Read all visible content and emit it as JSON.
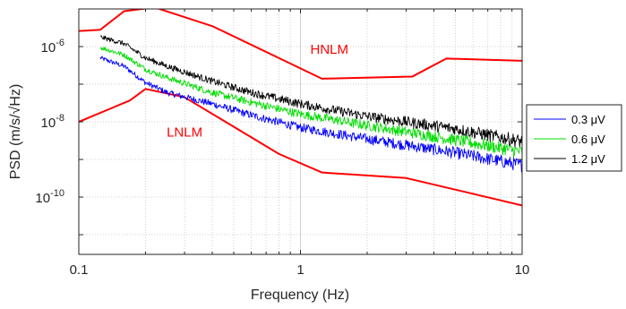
{
  "chart_data": {
    "type": "line",
    "xscale": "log",
    "yscale": "log",
    "xlim": [
      0.1,
      10
    ],
    "ylim": [
      3e-12,
      1e-05
    ],
    "xlabel": "Frequency (Hz)",
    "ylabel": "PSD (m/s/√Hz)",
    "xticks": [
      {
        "value": 0.1,
        "label": "0.1"
      },
      {
        "value": 1,
        "label": "1"
      },
      {
        "value": 10,
        "label": "10"
      }
    ],
    "yticks": [
      {
        "value": 1e-10,
        "base": "10",
        "exp": "-10"
      },
      {
        "value": 1e-08,
        "base": "10",
        "exp": "-8"
      },
      {
        "value": 1e-06,
        "base": "10",
        "exp": "-6"
      }
    ],
    "grid": true,
    "legend": {
      "placement": "outside-right"
    },
    "annotations": [
      {
        "text": "HNLM",
        "x": 1.35,
        "y": 6.5e-07,
        "color": "#ff0000"
      },
      {
        "text": "LNLM",
        "x": 0.3,
        "y": 4e-09,
        "color": "#ff0000"
      }
    ],
    "series": [
      {
        "key": "hnlm",
        "color": "#ff0000",
        "noise": false,
        "x": [
          0.1,
          0.125,
          0.16,
          0.22,
          0.4,
          1.25,
          3.2,
          4.55,
          10
        ],
        "y": [
          2.6e-06,
          2.8e-06,
          8.7e-06,
          1.1e-05,
          3.5e-06,
          1.4e-07,
          1.6e-07,
          4.8e-07,
          4.2e-07
        ]
      },
      {
        "key": "lnlm",
        "color": "#ff0000",
        "noise": false,
        "x": [
          0.1,
          0.17,
          0.2,
          0.3,
          0.8,
          1.25,
          3.0,
          10
        ],
        "y": [
          1e-08,
          3.7e-08,
          7.5e-08,
          4.5e-08,
          1.4e-09,
          4.5e-10,
          3.2e-10,
          6e-11
        ]
      },
      {
        "name": "0.3 μV",
        "color": "#0000ff",
        "noise": true,
        "x": [
          0.125,
          0.16,
          0.2,
          0.25,
          0.4,
          0.6,
          1.0,
          2.0,
          5.0,
          10
        ],
        "y": [
          5e-07,
          3e-07,
          1.1e-07,
          6e-08,
          3e-08,
          1.5e-08,
          7e-09,
          3.5e-09,
          1.5e-09,
          7e-10
        ]
      },
      {
        "name": "0.6 μV",
        "color": "#00dd00",
        "noise": true,
        "x": [
          0.125,
          0.16,
          0.2,
          0.25,
          0.4,
          0.6,
          1.0,
          2.0,
          5.0,
          10
        ],
        "y": [
          9.5e-07,
          6e-07,
          2.5e-07,
          1.5e-07,
          6e-08,
          3.3e-08,
          1.6e-08,
          8e-09,
          3.3e-09,
          1.6e-09
        ]
      },
      {
        "name": "1.2 μV",
        "color": "#000000",
        "noise": true,
        "x": [
          0.125,
          0.16,
          0.2,
          0.25,
          0.4,
          0.6,
          1.0,
          2.0,
          5.0,
          10
        ],
        "y": [
          1.8e-06,
          1.2e-06,
          5e-07,
          3e-07,
          1.2e-07,
          6e-08,
          3e-08,
          1.4e-08,
          6.5e-09,
          3e-09
        ]
      }
    ]
  }
}
